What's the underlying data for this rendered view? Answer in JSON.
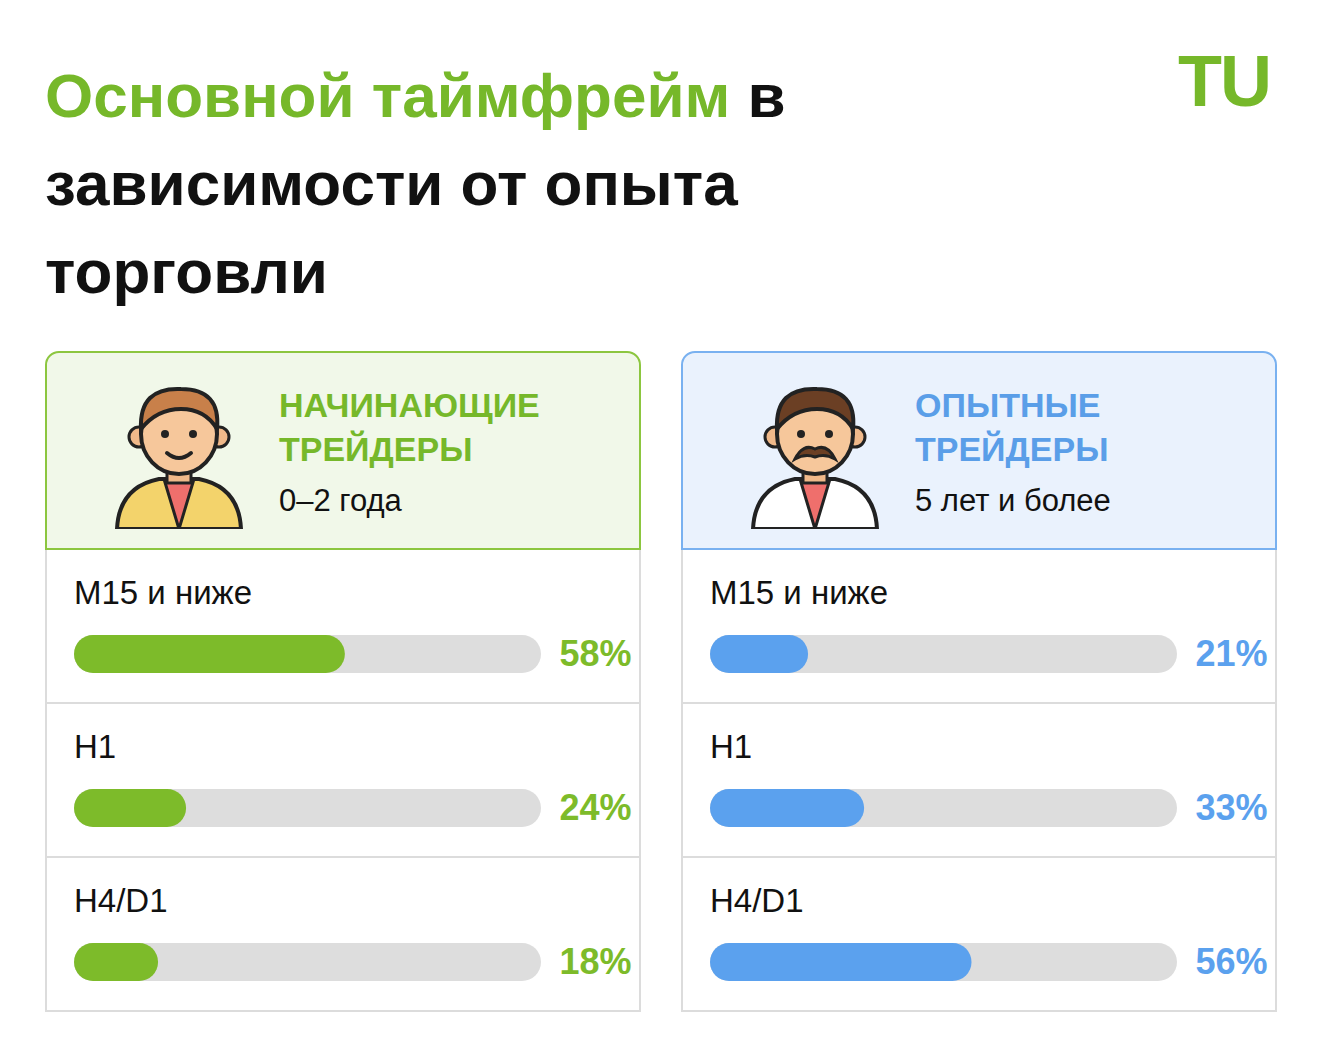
{
  "title": "Основной таймфрейм в зависимости от опыта торговли",
  "logo": "TU",
  "chart_data": [
    {
      "type": "bar",
      "orientation": "horizontal",
      "title": "НАЧИНАЮЩИЕ ТРЕЙДЕРЫ",
      "subtitle": "0–2 года",
      "categories": [
        "M15 и ниже",
        "H1",
        "H4/D1"
      ],
      "values": [
        58,
        24,
        18
      ],
      "value_labels": [
        "58%",
        "24%",
        "18%"
      ],
      "color": "#7dbb2a",
      "xlim": [
        0,
        100
      ],
      "tick_labels": false,
      "data_labels": true
    },
    {
      "type": "bar",
      "orientation": "horizontal",
      "title": "ОПЫТНЫЕ ТРЕЙДЕРЫ",
      "subtitle": "5 лет и более",
      "categories": [
        "M15 и ниже",
        "H1",
        "H4/D1"
      ],
      "values": [
        21,
        33,
        56
      ],
      "value_labels": [
        "21%",
        "33%",
        "56%"
      ],
      "color": "#5ba1ee",
      "xlim": [
        0,
        100
      ],
      "tick_labels": false,
      "data_labels": true
    }
  ]
}
